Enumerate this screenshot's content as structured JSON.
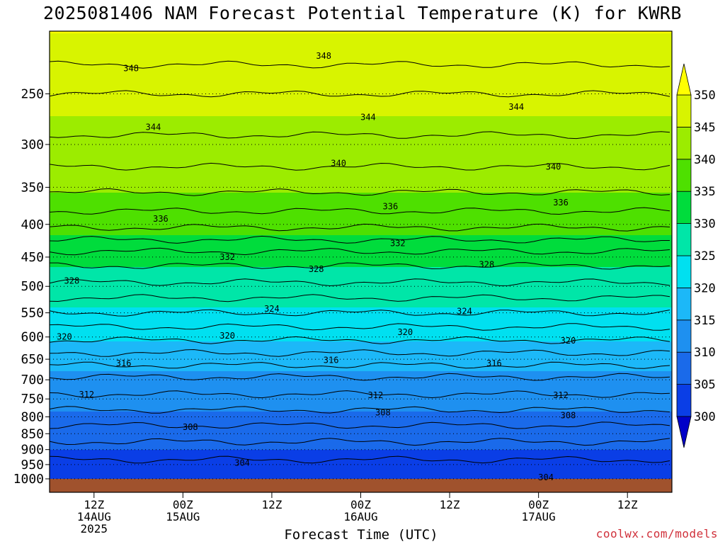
{
  "title": "2025081406 NAM Forecast Potential Temperature (K) for KWRB",
  "credit": "coolwx.com/models",
  "chart_data": {
    "type": "heatmap",
    "title": "2025081406 NAM Forecast Potential Temperature (K) for KWRB",
    "xlabel": "Forecast Time (UTC)",
    "ylabel": "",
    "x_ticks": [
      {
        "hour": 6,
        "label": [
          "12Z",
          "14AUG",
          "2025"
        ]
      },
      {
        "hour": 18,
        "label": [
          "00Z",
          "15AUG"
        ]
      },
      {
        "hour": 30,
        "label": [
          "12Z"
        ]
      },
      {
        "hour": 42,
        "label": [
          "00Z",
          "16AUG"
        ]
      },
      {
        "hour": 54,
        "label": [
          "12Z"
        ]
      },
      {
        "hour": 66,
        "label": [
          "00Z",
          "17AUG"
        ]
      },
      {
        "hour": 78,
        "label": [
          "12Z"
        ]
      }
    ],
    "xlim": [
      0,
      84
    ],
    "y_ticks": [
      250,
      300,
      350,
      400,
      450,
      500,
      550,
      600,
      650,
      700,
      750,
      800,
      850,
      900,
      950,
      1000
    ],
    "ylim_hPa": [
      200,
      1000
    ],
    "y_scale": "log",
    "colorbar": {
      "levels": [
        300,
        305,
        310,
        315,
        320,
        325,
        330,
        335,
        340,
        345,
        350
      ],
      "colors": [
        "#0000c8",
        "#0a3ee6",
        "#1a6aea",
        "#1e90f0",
        "#1cb8f8",
        "#00e0f0",
        "#00e6a8",
        "#00dc3c",
        "#4ee000",
        "#9cec00",
        "#d8f400",
        "#ffff00"
      ],
      "extend": "both"
    },
    "profile": {
      "pressure_hPa": [
        200,
        250,
        300,
        350,
        400,
        450,
        500,
        550,
        600,
        650,
        700,
        750,
        800,
        850,
        900,
        950,
        1000
      ],
      "theta_K": [
        350,
        346,
        343.5,
        340.5,
        336.5,
        331,
        327.5,
        324,
        320.5,
        317,
        313.5,
        311.5,
        309,
        307,
        305,
        303.5,
        302
      ]
    },
    "contour_labels": [
      {
        "value": "348",
        "hour": 11,
        "p": 228
      },
      {
        "value": "348",
        "hour": 37,
        "p": 218
      },
      {
        "value": "344",
        "hour": 43,
        "p": 272
      },
      {
        "value": "344",
        "hour": 63,
        "p": 262
      },
      {
        "value": "344",
        "hour": 14,
        "p": 282
      },
      {
        "value": "340",
        "hour": 39,
        "p": 321
      },
      {
        "value": "340",
        "hour": 68,
        "p": 325
      },
      {
        "value": "336",
        "hour": 15,
        "p": 392
      },
      {
        "value": "336",
        "hour": 46,
        "p": 375
      },
      {
        "value": "336",
        "hour": 69,
        "p": 370
      },
      {
        "value": "332",
        "hour": 24,
        "p": 450
      },
      {
        "value": "332",
        "hour": 47,
        "p": 428
      },
      {
        "value": "328",
        "hour": 36,
        "p": 470
      },
      {
        "value": "328",
        "hour": 59,
        "p": 462
      },
      {
        "value": "328",
        "hour": 3,
        "p": 490
      },
      {
        "value": "324",
        "hour": 30,
        "p": 542
      },
      {
        "value": "324",
        "hour": 56,
        "p": 547
      },
      {
        "value": "320",
        "hour": 2,
        "p": 600
      },
      {
        "value": "320",
        "hour": 24,
        "p": 597
      },
      {
        "value": "320",
        "hour": 48,
        "p": 590
      },
      {
        "value": "320",
        "hour": 70,
        "p": 608
      },
      {
        "value": "316",
        "hour": 10,
        "p": 660
      },
      {
        "value": "316",
        "hour": 38,
        "p": 652
      },
      {
        "value": "316",
        "hour": 60,
        "p": 660
      },
      {
        "value": "312",
        "hour": 5,
        "p": 738
      },
      {
        "value": "312",
        "hour": 44,
        "p": 740
      },
      {
        "value": "312",
        "hour": 69,
        "p": 740
      },
      {
        "value": "308",
        "hour": 45,
        "p": 788
      },
      {
        "value": "308",
        "hour": 70,
        "p": 796
      },
      {
        "value": "308",
        "hour": 19,
        "p": 830
      },
      {
        "value": "304",
        "hour": 26,
        "p": 944
      },
      {
        "value": "304",
        "hour": 67,
        "p": 995
      }
    ]
  }
}
